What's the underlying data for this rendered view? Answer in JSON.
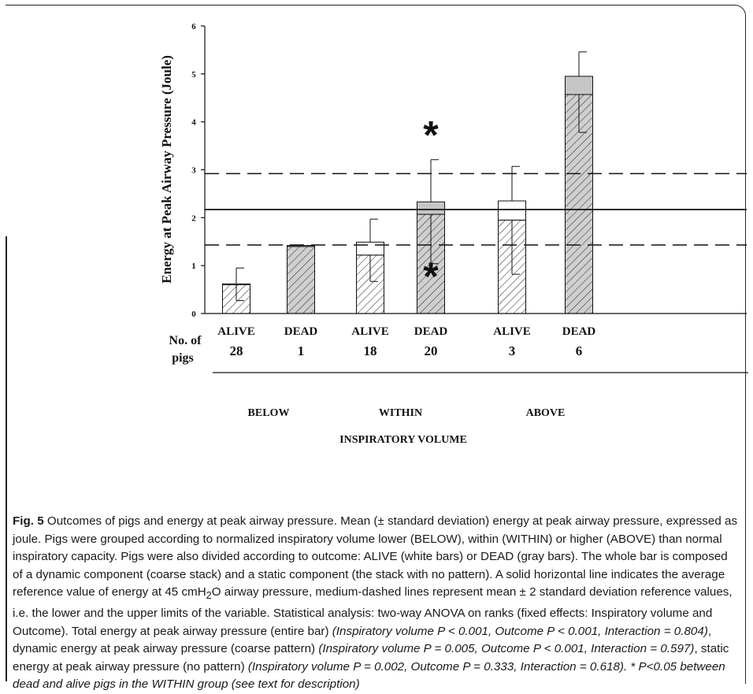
{
  "chart_data": {
    "type": "bar",
    "stacked": true,
    "ylabel": "Energy at Peak Airway Pressure (Joule)",
    "xlabel": "INSPIRATORY VOLUME",
    "ylim": [
      0,
      6
    ],
    "yticks": [
      "0",
      "1",
      "2",
      "3",
      "4",
      "5",
      "6"
    ],
    "row_label_line1": "No. of",
    "row_label_line2": "pigs",
    "groups": [
      {
        "label": "BELOW",
        "bars": [
          {
            "outcome": "ALIVE",
            "n": "28",
            "dynamic": 0.6,
            "static": 0.02,
            "total": 0.62,
            "sd_upper": 0.95,
            "sd_lower": 0.27
          },
          {
            "outcome": "DEAD",
            "n": "1",
            "dynamic": 1.4,
            "static": 0.02,
            "total": 1.42,
            "sd_upper": null,
            "sd_lower": null
          }
        ]
      },
      {
        "label": "WITHIN",
        "bars": [
          {
            "outcome": "ALIVE",
            "n": "18",
            "dynamic": 1.22,
            "static": 0.27,
            "total": 1.49,
            "sd_upper": 1.97,
            "sd_lower": 0.67
          },
          {
            "outcome": "DEAD",
            "n": "20",
            "dynamic": 2.07,
            "static": 0.26,
            "total": 2.33,
            "sd_upper": 3.21,
            "sd_lower": 1.04,
            "star_top": "*",
            "star_inner": "*"
          }
        ]
      },
      {
        "label": "ABOVE",
        "bars": [
          {
            "outcome": "ALIVE",
            "n": "3",
            "dynamic": 1.95,
            "static": 0.4,
            "total": 2.35,
            "sd_upper": 3.07,
            "sd_lower": 0.82
          },
          {
            "outcome": "DEAD",
            "n": "6",
            "dynamic": 4.57,
            "static": 0.38,
            "total": 4.95,
            "sd_upper": 5.46,
            "sd_lower": 3.78
          }
        ]
      }
    ],
    "reference_lines": {
      "mean": 2.17,
      "lower": 1.43,
      "upper": 2.92
    },
    "colors": {
      "alive": "#ffffff",
      "dead": "#cfcfcf",
      "static_dead": "#c6c6c6",
      "ink": "#111111"
    }
  },
  "caption": {
    "fig_label": "Fig. 5",
    "text_main": " Outcomes of pigs and energy at peak airway pressure. Mean (± standard deviation) energy at peak airway pressure, expressed as joule. Pigs were grouped according to normalized inspiratory volume lower (BELOW), within (WITHIN) or higher (ABOVE) than normal inspiratory capacity. Pigs were also divided according to outcome: ALIVE (white bars) or DEAD (gray bars). The whole bar is composed of a dynamic component (coarse stack) and a static component (the stack with no pattern). A solid horizontal line indicates the average reference value of energy at 45 cmH",
    "sub": "2",
    "text_after_sub": "O airway pressure, medium-dashed lines represent mean ± 2 standard deviation reference values, i.e. the lower and the upper limits of the variable. Statistical analysis: two-way ANOVA on ranks (fixed effects: Inspiratory volume and Outcome). Total energy at peak airway pressure (entire bar) ",
    "italic1": "(Inspiratory volume P < 0.001, Outcome P < 0.001, Interaction = 0.804)",
    "text2": ", dynamic energy at peak airway pressure  (coarse pattern) ",
    "italic2": "(Inspiratory volume P = 0.005, Outcome P < 0.001, Interaction = 0.597)",
    "text3": ", static energy at peak airway pressure (no pattern) ",
    "italic3": "(Inspiratory volume P = 0.002, Outcome P = 0.333, Interaction = 0.618). * P<0.05 between dead and alive pigs in the WITHIN group (see text for description)"
  }
}
